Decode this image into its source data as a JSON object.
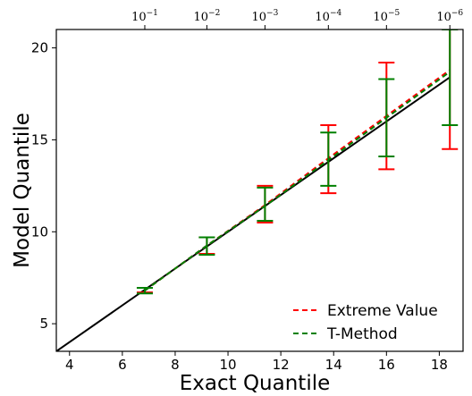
{
  "chart_data": {
    "type": "line",
    "xlabel": "Exact Quantile",
    "ylabel": "Model Quantile",
    "xlim": [
      3.5,
      18.9
    ],
    "ylim": [
      3.5,
      21
    ],
    "xticks": [
      4,
      6,
      8,
      10,
      12,
      14,
      16,
      18
    ],
    "yticks": [
      5,
      10,
      15,
      20
    ],
    "top_ticks": [
      {
        "x": 6.85,
        "base": "10",
        "exp": "−1"
      },
      {
        "x": 9.2,
        "base": "10",
        "exp": "−2"
      },
      {
        "x": 11.4,
        "base": "10",
        "exp": "−3"
      },
      {
        "x": 13.8,
        "base": "10",
        "exp": "−4"
      },
      {
        "x": 16.0,
        "base": "10",
        "exp": "−5"
      },
      {
        "x": 18.4,
        "base": "10",
        "exp": "−6"
      }
    ],
    "legend_position": "lower-right",
    "series": [
      {
        "name": "Extreme Value",
        "color": "#ff0000",
        "style": "dashed",
        "x": [
          6.85,
          9.2,
          11.4,
          13.8,
          16.0,
          18.4
        ],
        "y": [
          6.8,
          9.25,
          11.45,
          14.0,
          16.3,
          18.8
        ],
        "err_low": [
          6.7,
          8.8,
          10.5,
          12.1,
          13.4,
          14.5
        ],
        "err_high": [
          6.95,
          9.7,
          12.5,
          15.8,
          19.2,
          21.0
        ]
      },
      {
        "name": "T-Method",
        "color": "#008000",
        "style": "dashed",
        "x": [
          6.85,
          9.2,
          11.4,
          13.8,
          16.0,
          18.4
        ],
        "y": [
          6.8,
          9.25,
          11.4,
          13.9,
          16.2,
          18.7
        ],
        "err_low": [
          6.65,
          8.75,
          10.6,
          12.5,
          14.1,
          15.8
        ],
        "err_high": [
          6.95,
          9.7,
          12.4,
          15.4,
          18.3,
          21.0
        ]
      }
    ],
    "reference_line": {
      "color": "#000000",
      "x": [
        3.5,
        18.4
      ],
      "y": [
        3.5,
        18.4
      ]
    }
  }
}
